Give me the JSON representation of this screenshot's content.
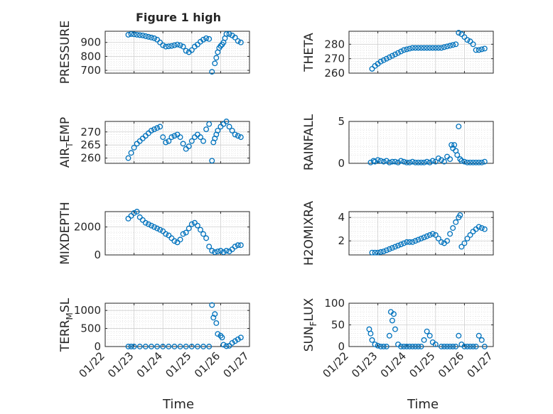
{
  "figure": {
    "title": "Figure 1 high",
    "xlabel": "Time"
  },
  "style": {
    "marker_color": "#0072BD",
    "axis_color": "#262626",
    "grid_color": "#dcdcdc"
  },
  "chart_data": [
    {
      "type": "scatter",
      "ylabel": "PRESSURE",
      "ylabel_sub": "",
      "ylabel_tail": "",
      "xlim": [
        0,
        5
      ],
      "ylim": [
        680,
        980
      ],
      "yticks": [
        700,
        800,
        900
      ],
      "yticklabels": [
        "700",
        "800",
        "900"
      ],
      "show_x_ticklabels": false,
      "grid": true,
      "x": [
        0.8,
        0.9,
        1.0,
        1.1,
        1.2,
        1.3,
        1.4,
        1.5,
        1.6,
        1.7,
        1.8,
        1.9,
        2.0,
        2.1,
        2.2,
        2.3,
        2.4,
        2.5,
        2.6,
        2.7,
        2.8,
        2.9,
        3.0,
        3.1,
        3.2,
        3.3,
        3.4,
        3.5,
        3.6,
        3.7,
        3.8,
        3.85,
        3.9,
        3.95,
        4.0,
        4.05,
        4.1,
        4.15,
        4.2,
        4.3,
        4.4,
        4.5,
        4.6,
        4.7
      ],
      "y": [
        955,
        960,
        958,
        955,
        952,
        950,
        945,
        940,
        935,
        930,
        920,
        900,
        880,
        870,
        872,
        875,
        880,
        885,
        880,
        870,
        840,
        830,
        845,
        870,
        885,
        905,
        920,
        930,
        925,
        690,
        750,
        790,
        830,
        860,
        875,
        885,
        900,
        930,
        960,
        960,
        950,
        935,
        910,
        900
      ]
    },
    {
      "type": "scatter",
      "ylabel": "THETA",
      "ylabel_sub": "",
      "ylabel_tail": "",
      "xlim": [
        0,
        5
      ],
      "ylim": [
        260,
        289
      ],
      "yticks": [
        260,
        270,
        280
      ],
      "yticklabels": [
        "260",
        "270",
        "280"
      ],
      "show_x_ticklabels": false,
      "grid": true,
      "x": [
        0.8,
        0.9,
        1.0,
        1.1,
        1.2,
        1.3,
        1.4,
        1.5,
        1.6,
        1.7,
        1.8,
        1.9,
        2.0,
        2.1,
        2.2,
        2.3,
        2.4,
        2.5,
        2.6,
        2.7,
        2.8,
        2.9,
        3.0,
        3.1,
        3.2,
        3.3,
        3.4,
        3.5,
        3.6,
        3.7,
        3.8,
        3.9,
        4.0,
        4.1,
        4.2,
        4.3,
        4.4,
        4.5,
        4.6,
        4.7
      ],
      "y": [
        263,
        265,
        266.5,
        268,
        269,
        270,
        271,
        272,
        273,
        274,
        275,
        276,
        276.5,
        277,
        277.5,
        277.5,
        277.5,
        277.5,
        277.5,
        277.5,
        277.5,
        277.5,
        277.5,
        277.5,
        277.5,
        278,
        278.5,
        279,
        279.5,
        280,
        288,
        287,
        285,
        283,
        282,
        280,
        276,
        276,
        276.5,
        277
      ]
    },
    {
      "type": "scatter",
      "ylabel": "AIR",
      "ylabel_sub": "T",
      "ylabel_tail": "EMP",
      "xlim": [
        0,
        5
      ],
      "ylim": [
        258,
        274
      ],
      "yticks": [
        260,
        265,
        270
      ],
      "yticklabels": [
        "260",
        "265",
        "270"
      ],
      "show_x_ticklabels": false,
      "grid": true,
      "x": [
        0.8,
        0.9,
        1.0,
        1.1,
        1.2,
        1.3,
        1.4,
        1.5,
        1.6,
        1.7,
        1.8,
        1.9,
        2.0,
        2.1,
        2.2,
        2.3,
        2.4,
        2.5,
        2.6,
        2.7,
        2.8,
        2.9,
        3.0,
        3.1,
        3.2,
        3.3,
        3.4,
        3.5,
        3.6,
        3.7,
        3.75,
        3.8,
        3.85,
        3.9,
        4.0,
        4.1,
        4.2,
        4.3,
        4.4,
        4.5,
        4.6,
        4.7
      ],
      "y": [
        260,
        262,
        264,
        265.5,
        266.5,
        267.5,
        268.5,
        269.5,
        270.5,
        271,
        271.5,
        272,
        268,
        266,
        266.5,
        268,
        268.5,
        269,
        268,
        265.5,
        263.5,
        264.5,
        266.5,
        268,
        269,
        268,
        266.5,
        271,
        273,
        259,
        266,
        267.5,
        269,
        270.5,
        272,
        273,
        274,
        272,
        270.5,
        269,
        268.5,
        268
      ]
    },
    {
      "type": "scatter",
      "ylabel": "RAINFALL",
      "ylabel_sub": "",
      "ylabel_tail": "",
      "xlim": [
        0,
        5
      ],
      "ylim": [
        0,
        5
      ],
      "yticks": [
        0,
        5
      ],
      "yticklabels": [
        "0",
        "5"
      ],
      "show_x_ticklabels": false,
      "grid": true,
      "x": [
        0.75,
        0.85,
        0.9,
        1.0,
        1.1,
        1.2,
        1.3,
        1.4,
        1.5,
        1.6,
        1.7,
        1.8,
        1.9,
        2.0,
        2.1,
        2.2,
        2.3,
        2.4,
        2.5,
        2.6,
        2.7,
        2.8,
        2.9,
        3.0,
        3.1,
        3.2,
        3.3,
        3.4,
        3.5,
        3.55,
        3.6,
        3.65,
        3.7,
        3.75,
        3.8,
        3.85,
        3.9,
        4.0,
        4.1,
        4.2,
        4.3,
        4.4,
        4.5,
        4.6,
        4.7
      ],
      "y": [
        0.1,
        0.3,
        0.2,
        0.4,
        0.3,
        0.2,
        0.3,
        0.1,
        0.2,
        0.2,
        0.1,
        0.3,
        0.2,
        0.1,
        0.1,
        0.2,
        0.1,
        0.1,
        0.1,
        0.1,
        0.2,
        0.1,
        0.3,
        0.2,
        0.6,
        0.4,
        0.2,
        0.8,
        0.5,
        2.2,
        1.8,
        2.2,
        1.5,
        1.0,
        4.4,
        0.5,
        0.3,
        0.2,
        0.1,
        0.1,
        0.1,
        0.1,
        0.1,
        0.1,
        0.2
      ]
    },
    {
      "type": "scatter",
      "ylabel": "MIXDEPTH",
      "ylabel_sub": "",
      "ylabel_tail": "",
      "xlim": [
        0,
        5
      ],
      "ylim": [
        0,
        3100
      ],
      "yticks": [
        0,
        2000
      ],
      "yticklabels": [
        "0",
        "2000"
      ],
      "show_x_ticklabels": false,
      "grid": true,
      "x": [
        0.8,
        0.9,
        1.0,
        1.1,
        1.2,
        1.3,
        1.4,
        1.5,
        1.6,
        1.7,
        1.8,
        1.9,
        2.0,
        2.1,
        2.2,
        2.3,
        2.4,
        2.5,
        2.6,
        2.7,
        2.8,
        2.9,
        3.0,
        3.1,
        3.2,
        3.3,
        3.4,
        3.5,
        3.6,
        3.7,
        3.8,
        3.9,
        4.0,
        4.1,
        4.2,
        4.3,
        4.4,
        4.5,
        4.6,
        4.7
      ],
      "y": [
        2600,
        2800,
        3000,
        3100,
        2700,
        2500,
        2300,
        2200,
        2100,
        2000,
        1900,
        1800,
        1700,
        1500,
        1400,
        1200,
        1000,
        900,
        1100,
        1500,
        1600,
        1900,
        2200,
        2300,
        2100,
        1800,
        1500,
        1200,
        600,
        300,
        200,
        250,
        300,
        200,
        300,
        250,
        400,
        600,
        700,
        700
      ]
    },
    {
      "type": "scatter",
      "ylabel": "H2OMIXRA",
      "ylabel_sub": "",
      "ylabel_tail": "",
      "xlim": [
        0,
        5
      ],
      "ylim": [
        0.8,
        4.5
      ],
      "yticks": [
        2,
        4
      ],
      "yticklabels": [
        "2",
        "4"
      ],
      "show_x_ticklabels": false,
      "grid": true,
      "x": [
        0.8,
        0.9,
        1.0,
        1.1,
        1.2,
        1.3,
        1.4,
        1.5,
        1.6,
        1.7,
        1.8,
        1.9,
        2.0,
        2.1,
        2.2,
        2.3,
        2.4,
        2.5,
        2.6,
        2.7,
        2.8,
        2.9,
        3.0,
        3.1,
        3.2,
        3.3,
        3.4,
        3.5,
        3.6,
        3.7,
        3.8,
        3.85,
        3.9,
        4.0,
        4.1,
        4.2,
        4.3,
        4.4,
        4.5,
        4.6,
        4.7
      ],
      "y": [
        1.0,
        1.0,
        1.0,
        1.05,
        1.1,
        1.2,
        1.3,
        1.4,
        1.5,
        1.6,
        1.7,
        1.8,
        1.9,
        1.9,
        1.9,
        2.0,
        2.1,
        2.2,
        2.3,
        2.4,
        2.5,
        2.6,
        2.5,
        2.2,
        1.9,
        1.8,
        2.0,
        2.6,
        3.1,
        3.6,
        4.0,
        4.2,
        1.5,
        1.8,
        2.2,
        2.5,
        2.8,
        3.0,
        3.2,
        3.1,
        3.0
      ]
    },
    {
      "type": "scatter",
      "ylabel": "TERR",
      "ylabel_sub": "M",
      "ylabel_tail": "SL",
      "xlim": [
        0,
        5
      ],
      "ylim": [
        0,
        1200
      ],
      "yticks": [
        0,
        500,
        1000
      ],
      "yticklabels": [
        "0",
        "500",
        "1000"
      ],
      "show_x_ticklabels": true,
      "xticks": [
        0,
        1,
        2,
        3,
        4,
        5
      ],
      "xticklabels": [
        "01/22",
        "01/23",
        "01/24",
        "01/25",
        "01/26",
        "01/27"
      ],
      "grid": true,
      "x": [
        0.8,
        0.9,
        1.0,
        1.2,
        1.4,
        1.6,
        1.8,
        2.0,
        2.2,
        2.4,
        2.6,
        2.8,
        3.0,
        3.2,
        3.4,
        3.6,
        3.7,
        3.75,
        3.8,
        3.85,
        3.9,
        4.0,
        4.05,
        4.1,
        4.2,
        4.3,
        4.4,
        4.5,
        4.6,
        4.7
      ],
      "y": [
        0,
        0,
        0,
        0,
        0,
        0,
        0,
        0,
        0,
        0,
        0,
        0,
        0,
        0,
        0,
        0,
        1150,
        800,
        900,
        650,
        350,
        300,
        250,
        50,
        10,
        20,
        100,
        150,
        200,
        250
      ]
    },
    {
      "type": "scatter",
      "ylabel": "SUN",
      "ylabel_sub": "F",
      "ylabel_tail": "LUX",
      "xlim": [
        0,
        5
      ],
      "ylim": [
        0,
        100
      ],
      "yticks": [
        0,
        50,
        100
      ],
      "yticklabels": [
        "0",
        "50",
        "100"
      ],
      "show_x_ticklabels": true,
      "xticks": [
        0,
        1,
        2,
        3,
        4,
        5
      ],
      "xticklabels": [
        "01/22",
        "01/23",
        "01/24",
        "01/25",
        "01/26",
        "01/27"
      ],
      "grid": true,
      "x": [
        0.7,
        0.75,
        0.8,
        0.9,
        1.0,
        1.1,
        1.2,
        1.3,
        1.4,
        1.45,
        1.5,
        1.55,
        1.6,
        1.7,
        1.8,
        1.9,
        2.0,
        2.1,
        2.2,
        2.3,
        2.4,
        2.5,
        2.6,
        2.7,
        2.8,
        2.9,
        3.0,
        3.2,
        3.3,
        3.4,
        3.5,
        3.6,
        3.7,
        3.8,
        3.9,
        4.0,
        4.1,
        4.2,
        4.3,
        4.4,
        4.5,
        4.6,
        4.7
      ],
      "y": [
        40,
        30,
        15,
        5,
        2,
        0,
        0,
        0,
        25,
        80,
        60,
        75,
        40,
        5,
        0,
        0,
        0,
        0,
        0,
        0,
        0,
        0,
        15,
        35,
        25,
        10,
        5,
        0,
        0,
        0,
        0,
        0,
        0,
        25,
        5,
        0,
        0,
        0,
        0,
        0,
        25,
        15,
        0
      ]
    }
  ]
}
